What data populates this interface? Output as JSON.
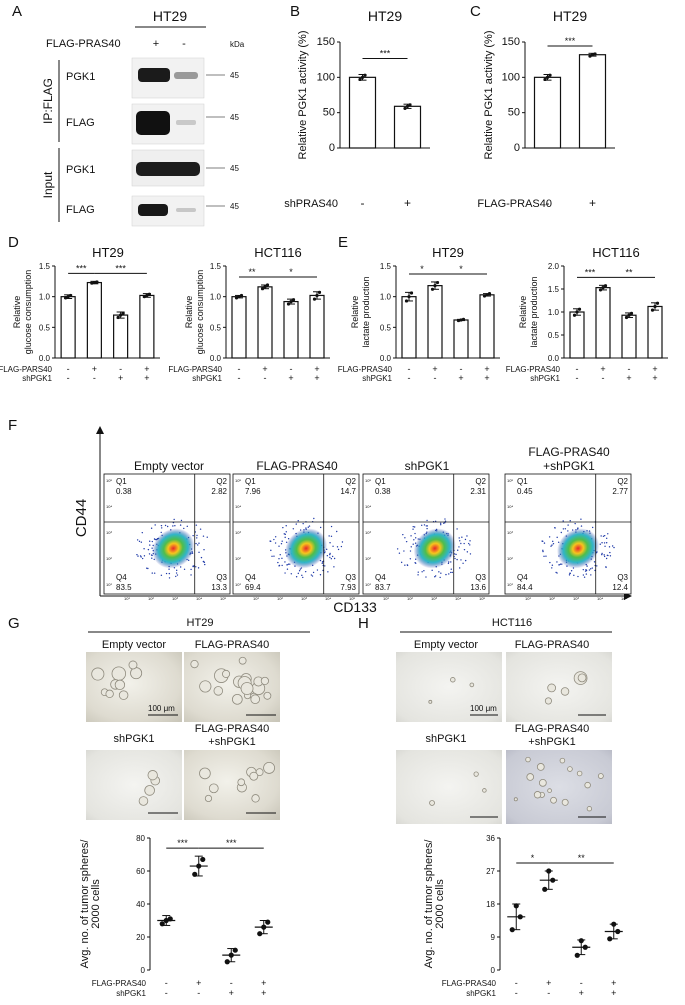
{
  "panels": {
    "A": {
      "letter": "A",
      "cell_line": "HT29",
      "condition_label": "FLAG-PRAS40",
      "condition_signs": [
        "+",
        "-"
      ],
      "kda": "kDa",
      "ip_label": "IP:FLAG",
      "input_label": "Input",
      "rows": [
        {
          "label": "PGK1",
          "marker": "45"
        },
        {
          "label": "FLAG",
          "marker": "45"
        },
        {
          "label": "PGK1",
          "marker": "45"
        },
        {
          "label": "FLAG",
          "marker": "45"
        }
      ]
    },
    "B": {
      "letter": "B"
    },
    "C": {
      "letter": "C"
    },
    "D": {
      "letter": "D"
    },
    "E": {
      "letter": "E"
    },
    "F": {
      "letter": "F",
      "titles": [
        "Empty vector",
        "FLAG-PRAS40",
        "shPGK1",
        "FLAG-PRAS40",
        "+shPGK1"
      ],
      "ylabel": "CD44",
      "xlabel": "CD133",
      "quadrant_names": [
        "Q1",
        "Q2",
        "Q3",
        "Q4"
      ],
      "plots": [
        {
          "q1": "0.38",
          "q2": "2.82",
          "q3": "13.3",
          "q4": "83.5"
        },
        {
          "q1": "7.96",
          "q2": "14.7",
          "q3": "7.93",
          "q4": "69.4"
        },
        {
          "q1": "0.38",
          "q2": "2.31",
          "q3": "13.6",
          "q4": "83.7"
        },
        {
          "q1": "0.45",
          "q2": "2.77",
          "q3": "12.4",
          "q4": "84.4"
        }
      ],
      "tick_labels_y": [
        "10⁵",
        "10⁴",
        "10³",
        "10²",
        "10¹"
      ],
      "tick_labels_x": [
        "10¹",
        "10²",
        "10³",
        "10⁴",
        "10⁵"
      ]
    },
    "G": {
      "letter": "G",
      "cell_line": "HT29",
      "titles": [
        "Empty vector",
        "FLAG-PRAS40",
        "shPGK1",
        "FLAG-PRAS40",
        "+shPGK1"
      ],
      "scale": "100 μm"
    },
    "H": {
      "letter": "H",
      "cell_line": "HCT116",
      "titles": [
        "Empty vector",
        "FLAG-PRAS40",
        "shPGK1",
        "FLAG-PRAS40",
        "+shPGK1"
      ],
      "scale": "100 μm"
    }
  },
  "chart_data": [
    {
      "id": "B",
      "type": "bar",
      "title": "HT29",
      "ylabel": "Relative PGK1 activity (%)",
      "ylim": [
        0,
        150
      ],
      "yticks": [
        "0",
        "50",
        "100",
        "150"
      ],
      "rows": [
        {
          "name": "shPRAS40",
          "signs": [
            "-",
            "+"
          ]
        }
      ],
      "values": [
        100,
        59
      ],
      "errors": [
        4,
        3
      ],
      "points": [
        [
          97,
          100,
          103
        ],
        [
          56,
          59,
          61
        ]
      ],
      "sig": [
        {
          "from": 0,
          "to": 1,
          "label": "***"
        }
      ]
    },
    {
      "id": "C",
      "type": "bar",
      "title": "HT29",
      "ylabel": "Relative PGK1 activity (%)",
      "ylim": [
        0,
        150
      ],
      "yticks": [
        "0",
        "50",
        "100",
        "150"
      ],
      "rows": [
        {
          "name": "FLAG-PRAS40",
          "signs": [
            "-",
            "+"
          ]
        }
      ],
      "values": [
        100,
        132
      ],
      "errors": [
        4,
        2
      ],
      "points": [
        [
          97,
          100,
          103
        ],
        [
          130,
          132,
          133
        ]
      ],
      "sig": [
        {
          "from": 0,
          "to": 1,
          "label": "***"
        }
      ]
    },
    {
      "id": "D1",
      "type": "bar",
      "title": "HT29",
      "ylabel": "Relative glucose consumption",
      "ylim": [
        0,
        1.5
      ],
      "yticks": [
        "0.0",
        "0.5",
        "1.0",
        "1.5"
      ],
      "rows": [
        {
          "name": "FLAG-PARS40",
          "signs": [
            "-",
            "+",
            "-",
            "+"
          ]
        },
        {
          "name": "shPGK1",
          "signs": [
            "-",
            "-",
            "+",
            "+"
          ]
        }
      ],
      "values": [
        1.0,
        1.23,
        0.7,
        1.02
      ],
      "errors": [
        0.03,
        0.02,
        0.05,
        0.03
      ],
      "points": [
        [
          0.98,
          1.0,
          1.02
        ],
        [
          1.22,
          1.23,
          1.24
        ],
        [
          0.66,
          0.7,
          0.73
        ],
        [
          1.0,
          1.02,
          1.04
        ]
      ],
      "sig": [
        {
          "from": 0,
          "to": 1,
          "label": "***"
        },
        {
          "from": 1,
          "to": 3,
          "label": "***"
        }
      ]
    },
    {
      "id": "D2",
      "type": "bar",
      "title": "HCT116",
      "ylabel": "Relative glucose consumption",
      "ylim": [
        0,
        1.5
      ],
      "yticks": [
        "0.0",
        "0.5",
        "1.0",
        "1.5"
      ],
      "rows": [
        {
          "name": "FLAG-PARS40",
          "signs": [
            "-",
            "+",
            "-",
            "+"
          ]
        },
        {
          "name": "shPGK1",
          "signs": [
            "-",
            "-",
            "+",
            "+"
          ]
        }
      ],
      "values": [
        1.0,
        1.16,
        0.92,
        1.02
      ],
      "errors": [
        0.02,
        0.03,
        0.04,
        0.06
      ],
      "points": [
        [
          0.98,
          1.0,
          1.02
        ],
        [
          1.13,
          1.16,
          1.19
        ],
        [
          0.88,
          0.92,
          0.95
        ],
        [
          0.96,
          1.02,
          1.07
        ]
      ],
      "sig": [
        {
          "from": 0,
          "to": 1,
          "label": "**"
        },
        {
          "from": 1,
          "to": 3,
          "label": "*"
        }
      ]
    },
    {
      "id": "E1",
      "type": "bar",
      "title": "HT29",
      "ylabel": "Relative lactate production",
      "ylim": [
        0,
        1.5
      ],
      "yticks": [
        "0.0",
        "0.5",
        "1.0",
        "1.5"
      ],
      "rows": [
        {
          "name": "FLAG-PRAS40",
          "signs": [
            "-",
            "+",
            "-",
            "+"
          ]
        },
        {
          "name": "shPGK1",
          "signs": [
            "-",
            "-",
            "+",
            "+"
          ]
        }
      ],
      "values": [
        1.0,
        1.18,
        0.62,
        1.03
      ],
      "errors": [
        0.07,
        0.06,
        0.01,
        0.02
      ],
      "points": [
        [
          0.93,
          1.0,
          1.06
        ],
        [
          1.12,
          1.18,
          1.23
        ],
        [
          0.61,
          0.62,
          0.63
        ],
        [
          1.01,
          1.03,
          1.05
        ]
      ],
      "sig": [
        {
          "from": 0,
          "to": 1,
          "label": "*"
        },
        {
          "from": 1,
          "to": 3,
          "label": "*"
        }
      ]
    },
    {
      "id": "E2",
      "type": "bar",
      "title": "HCT116",
      "ylabel": "Relative lactate production",
      "ylim": [
        0,
        2.0
      ],
      "yticks": [
        "0.0",
        "0.5",
        "1.0",
        "1.5",
        "2.0"
      ],
      "rows": [
        {
          "name": "FLAG-PRAS40",
          "signs": [
            "-",
            "+",
            "-",
            "+"
          ]
        },
        {
          "name": "shPGK1",
          "signs": [
            "-",
            "-",
            "+",
            "+"
          ]
        }
      ],
      "values": [
        1.0,
        1.53,
        0.93,
        1.12
      ],
      "errors": [
        0.07,
        0.05,
        0.05,
        0.08
      ],
      "points": [
        [
          0.93,
          1.0,
          1.06
        ],
        [
          1.48,
          1.53,
          1.57
        ],
        [
          0.88,
          0.93,
          0.97
        ],
        [
          1.04,
          1.12,
          1.19
        ]
      ],
      "sig": [
        {
          "from": 0,
          "to": 1,
          "label": "***"
        },
        {
          "from": 1,
          "to": 3,
          "label": "**"
        }
      ]
    },
    {
      "id": "G",
      "type": "scatter",
      "ylabel": "Avg. no. of tumor spheres/ 2000 cells",
      "ylim": [
        0,
        80
      ],
      "yticks": [
        "0",
        "20",
        "40",
        "60",
        "80"
      ],
      "rows": [
        {
          "name": "FLAG-PRAS40",
          "signs": [
            "-",
            "+",
            "-",
            "+"
          ]
        },
        {
          "name": "shPGK1",
          "signs": [
            "-",
            "-",
            "+",
            "+"
          ]
        }
      ],
      "means": [
        30,
        63,
        9,
        26
      ],
      "errors": [
        3,
        6,
        4,
        4
      ],
      "points": [
        [
          28,
          31,
          30
        ],
        [
          58,
          67,
          63
        ],
        [
          5,
          12,
          9
        ],
        [
          22,
          29,
          26
        ]
      ],
      "sig": [
        {
          "from": 0,
          "to": 1,
          "label": "***"
        },
        {
          "from": 1,
          "to": 3,
          "label": "***"
        }
      ]
    },
    {
      "id": "H",
      "type": "scatter",
      "ylabel": "Avg. no. of tumor spheres/ 2000 cells",
      "ylim": [
        0,
        36
      ],
      "yticks": [
        "0",
        "9",
        "18",
        "27",
        "36"
      ],
      "rows": [
        {
          "name": "FLAG-PRAS40",
          "signs": [
            "-",
            "+",
            "-",
            "+"
          ]
        },
        {
          "name": "shPGK1",
          "signs": [
            "-",
            "-",
            "+",
            "+"
          ]
        }
      ],
      "means": [
        14.5,
        24.5,
        6.2,
        10.5
      ],
      "errors": [
        3.5,
        2.5,
        2,
        2
      ],
      "points": [
        [
          11,
          14.5,
          17.5
        ],
        [
          22,
          24.5,
          27
        ],
        [
          4,
          6.2,
          8
        ],
        [
          8.5,
          10.5,
          12.5
        ]
      ],
      "sig": [
        {
          "from": 0,
          "to": 1,
          "label": "*"
        },
        {
          "from": 1,
          "to": 3,
          "label": "**"
        }
      ]
    }
  ]
}
